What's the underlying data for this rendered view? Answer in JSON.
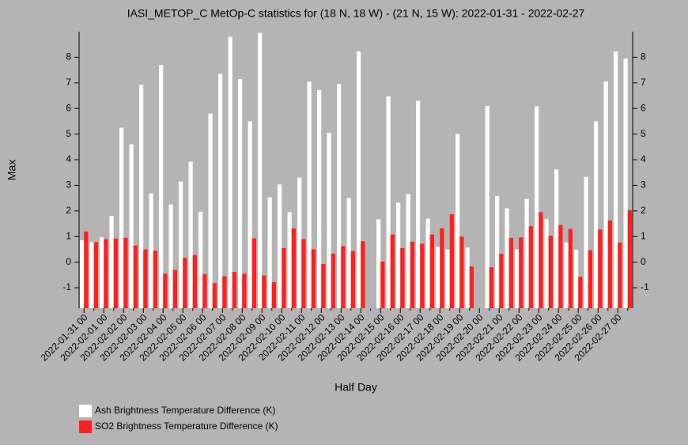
{
  "chart_data": {
    "type": "bar",
    "title": "IASI_METOP_C MetOp-C statistics for (18 N, 18 W) - (21 N, 15 W): 2022-01-31 - 2022-02-27",
    "xlabel": "Half Day",
    "ylabel": "Max",
    "categories": [
      "2022-01-31 00",
      null,
      "2022-02-01 00",
      null,
      "2022-02-02 00",
      null,
      "2022-02-03 00",
      null,
      "2022-02-04 00",
      null,
      "2022-02-05 00",
      null,
      "2022-02-06 00",
      null,
      "2022-02-07 00",
      null,
      "2022-02-08 00",
      null,
      "2022-02-09 00",
      null,
      "2022-02-10 00",
      null,
      "2022-02-11 00",
      null,
      "2022-02-12 00",
      null,
      "2022-02-13 00",
      null,
      "2022-02-14 00",
      null,
      "2022-02-15 00",
      null,
      "2022-02-16 00",
      null,
      "2022-02-17 00",
      null,
      "2022-02-18 00",
      null,
      "2022-02-19 00",
      null,
      "2022-02-20 00",
      null,
      "2022-02-21 00",
      null,
      "2022-02-22 00",
      null,
      "2022-02-23 00",
      null,
      "2022-02-24 00",
      null,
      "2022-02-25 00",
      null,
      "2022-02-26 00",
      null,
      "2022-02-27 00",
      null
    ],
    "series": [
      {
        "name": "Ash Brightness Temperature Difference (K)",
        "color": "#ffffff",
        "values": [
          0.85,
          0.78,
          0.97,
          1.8,
          5.25,
          4.6,
          6.92,
          2.68,
          7.7,
          2.25,
          3.15,
          3.92,
          1.97,
          5.8,
          7.35,
          8.8,
          7.15,
          5.5,
          8.95,
          2.53,
          3.03,
          1.95,
          3.3,
          7.05,
          6.72,
          5.05,
          6.95,
          2.5,
          8.22,
          null,
          1.67,
          6.47,
          2.32,
          2.65,
          6.3,
          1.7,
          0.6,
          0.5,
          5.0,
          0.57,
          null,
          6.1,
          2.58,
          2.1,
          0.5,
          2.47,
          6.08,
          1.68,
          3.62,
          0.77,
          0.48,
          3.33,
          5.5,
          7.05,
          8.22,
          7.95
        ]
      },
      {
        "name": "SO2 Brightness Temperature Difference (K)",
        "color": "#ff2020",
        "values": [
          1.2,
          0.78,
          0.9,
          0.92,
          0.95,
          0.65,
          0.5,
          0.45,
          -0.45,
          -0.3,
          0.17,
          0.28,
          -0.47,
          -0.82,
          -0.55,
          -0.38,
          -0.45,
          0.93,
          -0.52,
          -0.78,
          0.55,
          1.32,
          0.9,
          0.5,
          -0.07,
          0.33,
          0.62,
          0.43,
          0.82,
          null,
          0.02,
          1.08,
          0.55,
          0.8,
          0.72,
          1.08,
          1.32,
          1.87,
          1.0,
          -0.17,
          null,
          -0.2,
          0.32,
          0.95,
          0.97,
          1.4,
          1.95,
          1.03,
          1.45,
          1.3,
          -0.57,
          0.47,
          1.27,
          1.63,
          0.77,
          2.03
        ]
      }
    ],
    "ylim": [
      -1.8,
      9
    ],
    "yticks": [
      -1,
      0,
      1,
      2,
      3,
      4,
      5,
      6,
      7,
      8
    ]
  }
}
